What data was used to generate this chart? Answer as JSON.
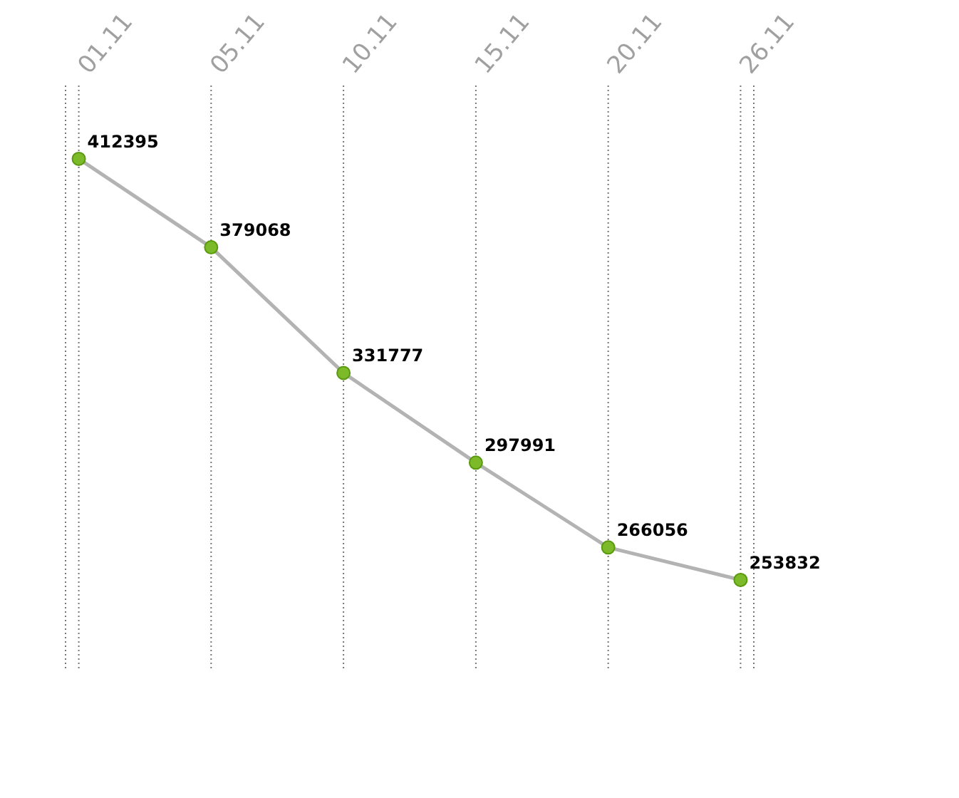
{
  "chart_data": {
    "type": "line",
    "categories": [
      "01.11",
      "05.11",
      "10.11",
      "15.11",
      "20.11",
      "26.11"
    ],
    "series": [
      {
        "color": "#b3b3b3",
        "values": [
          412395,
          379068,
          331777,
          297991,
          266056,
          253832
        ]
      }
    ],
    "ylim": [
      220000,
      440000
    ],
    "tick_labels": "x",
    "grid": "x",
    "marker": "circle",
    "line_style": "solid",
    "data_labels": true
  }
}
